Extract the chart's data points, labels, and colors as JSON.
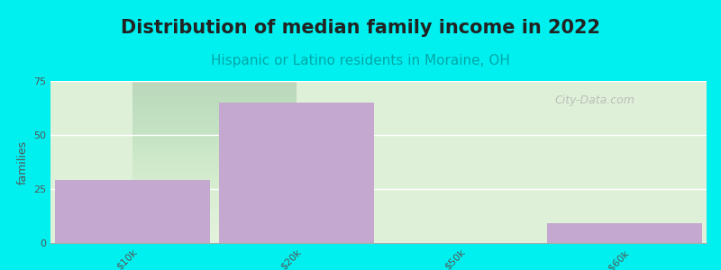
{
  "title": "Distribution of median family income in 2022",
  "subtitle": "Hispanic or Latino residents in Moraine, OH",
  "categories": [
    "$10k",
    "$20k",
    "$50k",
    ">$60k"
  ],
  "values": [
    29,
    65,
    0,
    9
  ],
  "bar_color": "#c4a8d0",
  "bg_color": "#00f0f0",
  "plot_bg_top": "#dff0d8",
  "plot_bg_bottom": "#f0faf0",
  "ylabel": "families",
  "ylim": [
    0,
    75
  ],
  "yticks": [
    0,
    25,
    50,
    75
  ],
  "watermark": "City-Data.com",
  "title_fontsize": 15,
  "subtitle_fontsize": 11,
  "subtitle_color": "#00a8a8",
  "title_color": "#222222"
}
